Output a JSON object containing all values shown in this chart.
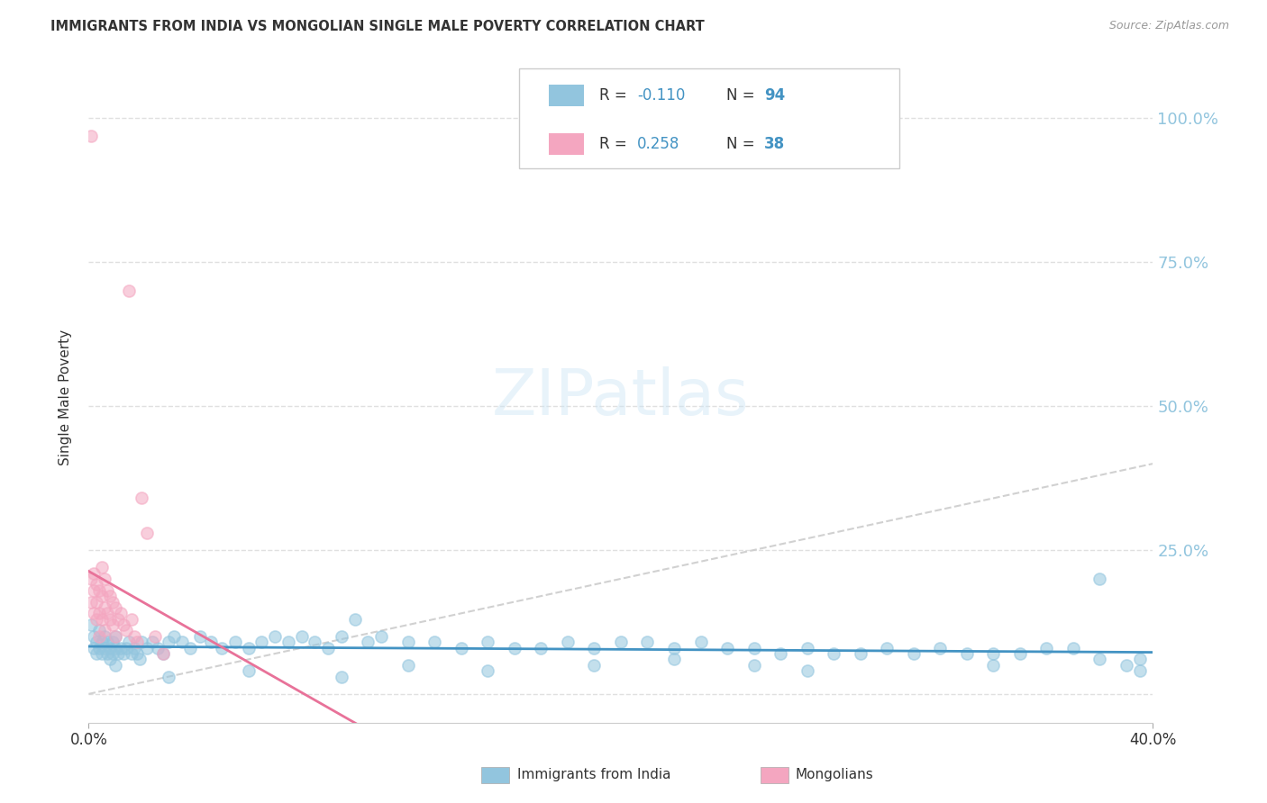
{
  "title": "IMMIGRANTS FROM INDIA VS MONGOLIAN SINGLE MALE POVERTY CORRELATION CHART",
  "source": "Source: ZipAtlas.com",
  "ylabel": "Single Male Poverty",
  "xlim": [
    0.0,
    0.4
  ],
  "ylim": [
    -0.05,
    1.08
  ],
  "yticks": [
    0.0,
    0.25,
    0.5,
    0.75,
    1.0
  ],
  "ytick_labels_right": [
    "",
    "25.0%",
    "50.0%",
    "75.0%",
    "100.0%"
  ],
  "xtick_vals": [
    0.0,
    0.4
  ],
  "xtick_labels": [
    "0.0%",
    "40.0%"
  ],
  "legend_india": "Immigrants from India",
  "legend_mongolia": "Mongolians",
  "legend_r_india": "-0.110",
  "legend_n_india": "94",
  "legend_r_mongolia": "0.258",
  "legend_n_mongolia": "38",
  "color_india": "#92C5DE",
  "color_mongolia": "#F4A6C0",
  "color_india_line": "#4393C3",
  "color_mongolia_line": "#E87299",
  "color_diagonal": "#cccccc",
  "color_grid": "#e0e0e0",
  "color_right_labels": "#92C5DE",
  "color_text_dark": "#333333",
  "color_r_value": "#4393C3",
  "background_color": "#ffffff",
  "india_x": [
    0.001,
    0.002,
    0.002,
    0.003,
    0.003,
    0.004,
    0.004,
    0.005,
    0.005,
    0.006,
    0.006,
    0.007,
    0.007,
    0.008,
    0.008,
    0.009,
    0.009,
    0.01,
    0.01,
    0.011,
    0.012,
    0.013,
    0.014,
    0.015,
    0.016,
    0.017,
    0.018,
    0.019,
    0.02,
    0.022,
    0.024,
    0.026,
    0.028,
    0.03,
    0.032,
    0.035,
    0.038,
    0.042,
    0.046,
    0.05,
    0.055,
    0.06,
    0.065,
    0.07,
    0.075,
    0.08,
    0.085,
    0.09,
    0.095,
    0.1,
    0.105,
    0.11,
    0.12,
    0.13,
    0.14,
    0.15,
    0.16,
    0.17,
    0.18,
    0.19,
    0.2,
    0.21,
    0.22,
    0.23,
    0.24,
    0.25,
    0.26,
    0.27,
    0.28,
    0.29,
    0.3,
    0.31,
    0.32,
    0.33,
    0.34,
    0.35,
    0.36,
    0.37,
    0.38,
    0.39,
    0.395,
    0.395,
    0.38,
    0.34,
    0.27,
    0.25,
    0.22,
    0.19,
    0.15,
    0.12,
    0.095,
    0.06,
    0.03,
    0.01
  ],
  "india_y": [
    0.12,
    0.1,
    0.08,
    0.09,
    0.07,
    0.08,
    0.11,
    0.09,
    0.07,
    0.08,
    0.1,
    0.07,
    0.09,
    0.08,
    0.06,
    0.07,
    0.09,
    0.08,
    0.1,
    0.07,
    0.08,
    0.07,
    0.08,
    0.09,
    0.07,
    0.08,
    0.07,
    0.06,
    0.09,
    0.08,
    0.09,
    0.08,
    0.07,
    0.09,
    0.1,
    0.09,
    0.08,
    0.1,
    0.09,
    0.08,
    0.09,
    0.08,
    0.09,
    0.1,
    0.09,
    0.1,
    0.09,
    0.08,
    0.1,
    0.13,
    0.09,
    0.1,
    0.09,
    0.09,
    0.08,
    0.09,
    0.08,
    0.08,
    0.09,
    0.08,
    0.09,
    0.09,
    0.08,
    0.09,
    0.08,
    0.08,
    0.07,
    0.08,
    0.07,
    0.07,
    0.08,
    0.07,
    0.08,
    0.07,
    0.07,
    0.07,
    0.08,
    0.08,
    0.2,
    0.05,
    0.06,
    0.04,
    0.06,
    0.05,
    0.04,
    0.05,
    0.06,
    0.05,
    0.04,
    0.05,
    0.03,
    0.04,
    0.03,
    0.05
  ],
  "mongolia_x": [
    0.001,
    0.001,
    0.001,
    0.002,
    0.002,
    0.002,
    0.003,
    0.003,
    0.003,
    0.004,
    0.004,
    0.004,
    0.005,
    0.005,
    0.005,
    0.006,
    0.006,
    0.006,
    0.007,
    0.007,
    0.008,
    0.008,
    0.009,
    0.009,
    0.01,
    0.01,
    0.011,
    0.012,
    0.013,
    0.014,
    0.015,
    0.016,
    0.017,
    0.018,
    0.02,
    0.022,
    0.025,
    0.028
  ],
  "mongolia_y": [
    0.97,
    0.2,
    0.16,
    0.21,
    0.18,
    0.14,
    0.19,
    0.16,
    0.13,
    0.18,
    0.14,
    0.1,
    0.22,
    0.17,
    0.13,
    0.2,
    0.15,
    0.11,
    0.18,
    0.14,
    0.17,
    0.13,
    0.16,
    0.12,
    0.15,
    0.1,
    0.13,
    0.14,
    0.12,
    0.11,
    0.7,
    0.13,
    0.1,
    0.09,
    0.34,
    0.28,
    0.1,
    0.07
  ]
}
